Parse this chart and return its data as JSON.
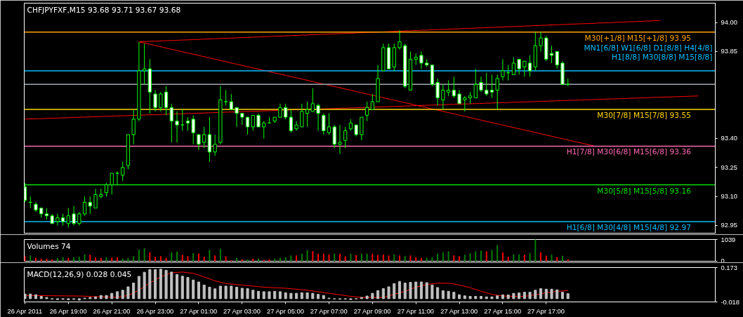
{
  "chart_data": [
    {
      "type": "candlestick",
      "title": "CHFJPYFXF,M15  93.68 93.71 93.67 93.68",
      "tick_labels": "y",
      "xlim": [
        "2011-04-26T16:58",
        "2011-04-28T00:47"
      ],
      "ylim": [
        92.91,
        94.1
      ],
      "yticks": [
        {
          "value": 94,
          "label": "94.00"
        },
        93.85,
        {
          "value": 93.4,
          "label": "93.40"
        },
        93.25,
        {
          "value": 93.1,
          "label": "93.10"
        },
        92.95
      ],
      "x": [
        "2011-04-26T17:00",
        "2011-04-26T17:15",
        "2011-04-26T17:30",
        "2011-04-26T17:45",
        "2011-04-26T18:00",
        "2011-04-26T18:15",
        "2011-04-26T18:30",
        "2011-04-26T18:45",
        "2011-04-26T19:00",
        "2011-04-26T19:15",
        "2011-04-26T19:30",
        "2011-04-26T19:45",
        "2011-04-26T20:00",
        "2011-04-26T20:15",
        "2011-04-26T20:30",
        "2011-04-26T20:45",
        "2011-04-26T21:00",
        "2011-04-26T21:15",
        "2011-04-26T21:30",
        "2011-04-26T21:45",
        "2011-04-26T22:00",
        "2011-04-26T22:15",
        "2011-04-26T22:30",
        "2011-04-26T22:45",
        "2011-04-26T23:00",
        "2011-04-26T23:15",
        "2011-04-26T23:30",
        "2011-04-26T23:45",
        "2011-04-27T00:00",
        "2011-04-27T00:15",
        "2011-04-27T00:30",
        "2011-04-27T00:45",
        "2011-04-27T01:00",
        "2011-04-27T01:15",
        "2011-04-27T01:30",
        "2011-04-27T01:45",
        "2011-04-27T02:00",
        "2011-04-27T02:15",
        "2011-04-27T02:30",
        "2011-04-27T02:45",
        "2011-04-27T03:00",
        "2011-04-27T03:15",
        "2011-04-27T03:30",
        "2011-04-27T03:45",
        "2011-04-27T04:00",
        "2011-04-27T04:15",
        "2011-04-27T04:30",
        "2011-04-27T04:45",
        "2011-04-27T05:00",
        "2011-04-27T05:15",
        "2011-04-27T05:30",
        "2011-04-27T05:45",
        "2011-04-27T06:00",
        "2011-04-27T06:15",
        "2011-04-27T06:30",
        "2011-04-27T06:45",
        "2011-04-27T07:00",
        "2011-04-27T07:15",
        "2011-04-27T07:30",
        "2011-04-27T07:45",
        "2011-04-27T08:00",
        "2011-04-27T08:15",
        "2011-04-27T08:30",
        "2011-04-27T08:45",
        "2011-04-27T09:00",
        "2011-04-27T09:15",
        "2011-04-27T09:30",
        "2011-04-27T09:45",
        "2011-04-27T10:00",
        "2011-04-27T10:15",
        "2011-04-27T10:30",
        "2011-04-27T10:45",
        "2011-04-27T11:00",
        "2011-04-27T11:15",
        "2011-04-27T11:30",
        "2011-04-27T11:45",
        "2011-04-27T12:00",
        "2011-04-27T12:15",
        "2011-04-27T12:30",
        "2011-04-27T12:45",
        "2011-04-27T13:00",
        "2011-04-27T13:15",
        "2011-04-27T13:30",
        "2011-04-27T13:45",
        "2011-04-27T14:00",
        "2011-04-27T14:15",
        "2011-04-27T14:30",
        "2011-04-27T14:45",
        "2011-04-27T15:00",
        "2011-04-27T15:15",
        "2011-04-27T15:30",
        "2011-04-27T15:45",
        "2011-04-27T16:00",
        "2011-04-27T16:15",
        "2011-04-27T16:30",
        "2011-04-27T16:45",
        "2011-04-27T17:00",
        "2011-04-27T17:15",
        "2011-04-27T17:30",
        "2011-04-27T17:45",
        "2011-04-27T18:00"
      ],
      "series": [
        {
          "type": "line",
          "color": "#ff0000",
          "x": [
            "2011-04-26T22:15",
            "2011-04-27T22:15"
          ],
          "values": [
            93.9,
            94.01
          ]
        },
        {
          "type": "line",
          "color": "#ff0000",
          "x": [
            "2011-04-26T22:15",
            "2011-04-27T19:15"
          ],
          "values": [
            93.9,
            93.36
          ]
        },
        {
          "type": "line",
          "color": "#ff0000",
          "x": [
            "2011-04-26T17:00",
            "2011-04-28T00:00"
          ],
          "values": [
            93.5,
            93.62
          ]
        },
        {
          "type": "candlestick",
          "color": "#00ff00",
          "ohlc": [
            [
              93.15,
              93.17,
              93.07,
              93.08
            ],
            [
              93.07,
              93.1,
              93.04,
              93.07
            ],
            [
              93.06,
              93.07,
              93.02,
              93.03
            ],
            [
              93.04,
              93.04,
              92.99,
              93.01
            ],
            [
              93.01,
              93.04,
              92.98,
              93.0
            ],
            [
              93.0,
              93.01,
              92.96,
              92.96
            ],
            [
              92.97,
              93.01,
              92.95,
              92.99
            ],
            [
              92.99,
              93.01,
              92.95,
              92.97
            ],
            [
              92.96,
              93.04,
              92.94,
              93.0
            ],
            [
              93.01,
              93.05,
              92.95,
              92.96
            ],
            [
              92.96,
              93.02,
              92.95,
              93.01
            ],
            [
              93.01,
              93.1,
              93.0,
              93.07
            ],
            [
              93.07,
              93.1,
              93.01,
              93.05
            ],
            [
              93.04,
              93.14,
              93.04,
              93.11
            ],
            [
              93.1,
              93.14,
              93.09,
              93.11
            ],
            [
              93.12,
              93.17,
              93.1,
              93.16
            ],
            [
              93.16,
              93.22,
              93.11,
              93.22
            ],
            [
              93.22,
              93.23,
              93.16,
              93.22
            ],
            [
              93.21,
              93.28,
              93.18,
              93.25
            ],
            [
              93.26,
              93.42,
              93.24,
              93.42
            ],
            [
              93.42,
              93.55,
              93.37,
              93.5
            ],
            [
              93.5,
              93.9,
              93.49,
              93.75
            ],
            [
              93.75,
              93.89,
              93.68,
              93.76
            ],
            [
              93.76,
              93.81,
              93.53,
              93.64
            ],
            [
              93.63,
              93.65,
              93.54,
              93.56
            ],
            [
              93.56,
              93.64,
              93.54,
              93.63
            ],
            [
              93.64,
              93.67,
              93.52,
              93.56
            ],
            [
              93.56,
              93.58,
              93.38,
              93.49
            ],
            [
              93.49,
              93.54,
              93.38,
              93.47
            ],
            [
              93.47,
              93.55,
              93.44,
              93.47
            ],
            [
              93.49,
              93.51,
              93.44,
              93.48
            ],
            [
              93.5,
              93.52,
              93.37,
              93.43
            ],
            [
              93.42,
              93.42,
              93.34,
              93.37
            ],
            [
              93.38,
              93.46,
              93.35,
              93.42
            ],
            [
              93.42,
              93.51,
              93.28,
              93.33
            ],
            [
              93.33,
              93.42,
              93.31,
              93.37
            ],
            [
              93.38,
              93.67,
              93.37,
              93.6
            ],
            [
              93.59,
              93.65,
              93.57,
              93.59
            ],
            [
              93.59,
              93.63,
              93.55,
              93.55
            ],
            [
              93.56,
              93.56,
              93.46,
              93.53
            ],
            [
              93.53,
              93.53,
              93.47,
              93.51
            ],
            [
              93.51,
              93.51,
              93.42,
              93.46
            ],
            [
              93.46,
              93.52,
              93.44,
              93.52
            ],
            [
              93.52,
              93.53,
              93.46,
              93.46
            ],
            [
              93.46,
              93.49,
              93.4,
              93.48
            ],
            [
              93.48,
              93.51,
              93.48,
              93.48
            ],
            [
              93.49,
              93.51,
              93.48,
              93.51
            ],
            [
              93.51,
              93.58,
              93.51,
              93.56
            ],
            [
              93.56,
              93.58,
              93.5,
              93.51
            ],
            [
              93.51,
              93.55,
              93.43,
              93.44
            ],
            [
              93.45,
              93.49,
              93.44,
              93.47
            ],
            [
              93.46,
              93.58,
              93.46,
              93.54
            ],
            [
              93.53,
              93.59,
              93.46,
              93.55
            ],
            [
              93.54,
              93.66,
              93.54,
              93.58
            ],
            [
              93.57,
              93.58,
              93.44,
              93.53
            ],
            [
              93.52,
              93.53,
              93.42,
              93.44
            ],
            [
              93.43,
              93.53,
              93.42,
              93.46
            ],
            [
              93.46,
              93.47,
              93.35,
              93.37
            ],
            [
              93.37,
              93.47,
              93.32,
              93.38
            ],
            [
              93.39,
              93.46,
              93.35,
              93.44
            ],
            [
              93.45,
              93.5,
              93.44,
              93.48
            ],
            [
              93.47,
              93.47,
              93.41,
              93.42
            ],
            [
              93.42,
              93.51,
              93.39,
              93.51
            ],
            [
              93.52,
              93.59,
              93.49,
              93.56
            ],
            [
              93.55,
              93.63,
              93.55,
              93.59
            ],
            [
              93.59,
              93.78,
              93.59,
              93.71
            ],
            [
              93.75,
              93.89,
              93.75,
              93.87
            ],
            [
              93.87,
              93.89,
              93.76,
              93.76
            ],
            [
              93.77,
              93.89,
              93.75,
              93.87
            ],
            [
              93.87,
              93.96,
              93.86,
              93.9
            ],
            [
              93.88,
              93.89,
              93.66,
              93.67
            ],
            [
              93.65,
              93.85,
              93.65,
              93.81
            ],
            [
              93.81,
              93.84,
              93.78,
              93.82
            ],
            [
              93.83,
              93.85,
              93.76,
              93.79
            ],
            [
              93.79,
              93.81,
              93.77,
              93.78
            ],
            [
              93.78,
              93.78,
              93.67,
              93.68
            ],
            [
              93.69,
              93.71,
              93.57,
              93.61
            ],
            [
              93.6,
              93.68,
              93.55,
              93.65
            ],
            [
              93.64,
              93.7,
              93.62,
              93.65
            ],
            [
              93.65,
              93.72,
              93.61,
              93.62
            ],
            [
              93.63,
              93.65,
              93.58,
              93.58
            ],
            [
              93.6,
              93.62,
              93.54,
              93.61
            ],
            [
              93.61,
              93.64,
              93.58,
              93.62
            ],
            [
              93.61,
              93.76,
              93.61,
              93.68
            ],
            [
              93.69,
              93.72,
              93.64,
              93.65
            ],
            [
              93.65,
              93.74,
              93.62,
              93.63
            ],
            [
              93.65,
              93.73,
              93.61,
              93.64
            ],
            [
              93.65,
              93.73,
              93.55,
              93.71
            ],
            [
              93.72,
              93.81,
              93.7,
              93.75
            ],
            [
              93.74,
              93.78,
              93.7,
              93.74
            ],
            [
              93.73,
              93.82,
              93.73,
              93.79
            ],
            [
              93.81,
              93.81,
              93.73,
              93.76
            ],
            [
              93.77,
              93.8,
              93.72,
              93.8
            ],
            [
              93.79,
              93.83,
              93.72,
              93.75
            ],
            [
              93.77,
              93.95,
              93.75,
              93.88
            ],
            [
              93.88,
              93.95,
              93.85,
              93.92
            ],
            [
              93.92,
              93.93,
              93.8,
              93.81
            ],
            [
              93.84,
              93.88,
              93.79,
              93.83
            ],
            [
              93.85,
              93.85,
              93.76,
              93.78
            ],
            [
              93.79,
              93.8,
              93.68,
              93.68
            ],
            [
              93.68,
              93.71,
              93.67,
              93.68
            ]
          ]
        }
      ],
      "ref_lines": [
        {
          "axis": "y",
          "value": 93.95,
          "label": "M30[+1/8] M15[+1/8]          93.95",
          "color": "#ffa500"
        },
        {
          "axis": "y",
          "value": 93.75,
          "label": "MN1[6/8] W1[6/8] D1[8/8] H4[4/8] H1[8/8] M30[8/8] M15[8/8]",
          "color": "#00bfff"
        },
        {
          "axis": "y",
          "value": 93.68,
          "label": null,
          "color": "#a0a8b0"
        },
        {
          "axis": "y",
          "value": 93.55,
          "label": "M30[7/8] M15[7/8]          93.55",
          "color": "#ffd700"
        },
        {
          "axis": "y",
          "value": 93.36,
          "label": "H1[7/8] M30[6/8] M15[6/8]          93.36",
          "color": "#ff69b4"
        },
        {
          "axis": "y",
          "value": 93.16,
          "label": "M30[5/8] M15[5/8]          93.16",
          "color": "#00e000"
        },
        {
          "axis": "y",
          "value": 92.97,
          "label": "H1[6/8] M30[4/8] M15[4/8]          92.97",
          "color": "#00bfff"
        }
      ]
    },
    {
      "type": "bar",
      "title": "Volumes 74",
      "tick_labels": "y",
      "xlim": [
        "2011-04-26T16:58",
        "2011-04-28T00:47"
      ],
      "ylim": [
        0,
        1039
      ],
      "yticks": [
        1039,
        0
      ],
      "x": [
        "2011-04-26T17:00",
        "2011-04-26T17:15",
        "2011-04-26T17:30",
        "2011-04-26T17:45",
        "2011-04-26T18:00",
        "2011-04-26T18:15",
        "2011-04-26T18:30",
        "2011-04-26T18:45",
        "2011-04-26T19:00",
        "2011-04-26T19:15",
        "2011-04-26T19:30",
        "2011-04-26T19:45",
        "2011-04-26T20:00",
        "2011-04-26T20:15",
        "2011-04-26T20:30",
        "2011-04-26T20:45",
        "2011-04-26T21:00",
        "2011-04-26T21:15",
        "2011-04-26T21:30",
        "2011-04-26T21:45",
        "2011-04-26T22:00",
        "2011-04-26T22:15",
        "2011-04-26T22:30",
        "2011-04-26T22:45",
        "2011-04-26T23:00",
        "2011-04-26T23:15",
        "2011-04-26T23:30",
        "2011-04-26T23:45",
        "2011-04-27T00:00",
        "2011-04-27T00:15",
        "2011-04-27T00:30",
        "2011-04-27T00:45",
        "2011-04-27T01:00",
        "2011-04-27T01:15",
        "2011-04-27T01:30",
        "2011-04-27T01:45",
        "2011-04-27T02:00",
        "2011-04-27T02:15",
        "2011-04-27T02:30",
        "2011-04-27T02:45",
        "2011-04-27T03:00",
        "2011-04-27T03:15",
        "2011-04-27T03:30",
        "2011-04-27T03:45",
        "2011-04-27T04:00",
        "2011-04-27T04:15",
        "2011-04-27T04:30",
        "2011-04-27T04:45",
        "2011-04-27T05:00",
        "2011-04-27T05:15",
        "2011-04-27T05:30",
        "2011-04-27T05:45",
        "2011-04-27T06:00",
        "2011-04-27T06:15",
        "2011-04-27T06:30",
        "2011-04-27T06:45",
        "2011-04-27T07:00",
        "2011-04-27T07:15",
        "2011-04-27T07:30",
        "2011-04-27T07:45",
        "2011-04-27T08:00",
        "2011-04-27T08:15",
        "2011-04-27T08:30",
        "2011-04-27T08:45",
        "2011-04-27T09:00",
        "2011-04-27T09:15",
        "2011-04-27T09:30",
        "2011-04-27T09:45",
        "2011-04-27T10:00",
        "2011-04-27T10:15",
        "2011-04-27T10:30",
        "2011-04-27T10:45",
        "2011-04-27T11:00",
        "2011-04-27T11:15",
        "2011-04-27T11:30",
        "2011-04-27T11:45",
        "2011-04-27T12:00",
        "2011-04-27T12:15",
        "2011-04-27T12:30",
        "2011-04-27T12:45",
        "2011-04-27T13:00",
        "2011-04-27T13:15",
        "2011-04-27T13:30",
        "2011-04-27T13:45",
        "2011-04-27T14:00",
        "2011-04-27T14:15",
        "2011-04-27T14:30",
        "2011-04-27T14:45",
        "2011-04-27T15:00",
        "2011-04-27T15:15",
        "2011-04-27T15:30",
        "2011-04-27T15:45",
        "2011-04-27T16:00",
        "2011-04-27T16:15",
        "2011-04-27T16:30",
        "2011-04-27T16:45",
        "2011-04-27T17:00",
        "2011-04-27T17:15",
        "2011-04-27T17:30",
        "2011-04-27T17:45",
        "2011-04-27T18:00"
      ],
      "values": [
        230,
        265,
        150,
        115,
        115,
        80,
        150,
        185,
        150,
        185,
        205,
        320,
        300,
        175,
        150,
        185,
        150,
        185,
        115,
        150,
        230,
        550,
        600,
        415,
        205,
        230,
        150,
        415,
        450,
        290,
        240,
        380,
        355,
        205,
        530,
        265,
        590,
        230,
        35,
        150,
        80,
        80,
        115,
        115,
        45,
        90,
        115,
        150,
        185,
        265,
        265,
        350,
        520,
        470,
        350,
        350,
        320,
        350,
        350,
        230,
        350,
        280,
        350,
        350,
        350,
        290,
        320,
        265,
        320,
        265,
        240,
        265,
        185,
        150,
        150,
        185,
        355,
        415,
        460,
        265,
        230,
        300,
        370,
        460,
        495,
        460,
        530,
        760,
        415,
        205,
        320,
        320,
        290,
        380,
        1039,
        415,
        255,
        300,
        185,
        255,
        74
      ],
      "colors": [
        "#ff0000",
        "#008000",
        "#ff0000",
        "#ff0000",
        "#ff0000",
        "#ff0000",
        "#008000",
        "#008000",
        "#ff0000",
        "#008000",
        "#008000",
        "#008000",
        "#ff0000",
        "#ff0000",
        "#ff0000",
        "#008000",
        "#ff0000",
        "#ff0000",
        "#008000",
        "#008000",
        "#008000",
        "#008000",
        "#008000",
        "#ff0000",
        "#ff0000",
        "#ff0000",
        "#ff0000",
        "#008000",
        "#008000",
        "#ff0000",
        "#ff0000",
        "#008000",
        "#ff0000",
        "#ff0000",
        "#008000",
        "#ff0000",
        "#008000",
        "#ff0000",
        "#ff0000",
        "#008000",
        "#ff0000",
        "#008000",
        "#ff0000",
        "#008000",
        "#ff0000",
        "#ff0000",
        "#008000",
        "#008000",
        "#008000",
        "#008000",
        "#ff0000",
        "#008000",
        "#008000",
        "#ff0000",
        "#ff0000",
        "#ff0000",
        "#ff0000",
        "#008000",
        "#ff0000",
        "#ff0000",
        "#008000",
        "#ff0000",
        "#008000",
        "#008000",
        "#ff0000",
        "#ff0000",
        "#ff0000",
        "#ff0000",
        "#008000",
        "#ff0000",
        "#008000",
        "#ff0000",
        "#ff0000",
        "#ff0000",
        "#008000",
        "#008000",
        "#008000",
        "#008000",
        "#008000",
        "#ff0000",
        "#ff0000",
        "#008000",
        "#008000",
        "#008000",
        "#008000",
        "#ff0000",
        "#008000",
        "#008000",
        "#ff0000",
        "#ff0000",
        "#008000",
        "#008000",
        "#ff0000",
        "#008000",
        "#008000",
        "#ff0000",
        "#ff0000",
        "#008000",
        "#ff0000",
        "#008000",
        "#ff0000"
      ]
    },
    {
      "type": "bar",
      "title": "MACD(12,26,9) 0.028 0.045",
      "xlim": [
        "2011-04-26T16:58",
        "2011-04-28T00:47"
      ],
      "ylim": [
        -0.018,
        0.173
      ],
      "yticks": [
        0.173,
        -0.018
      ],
      "x": [
        "2011-04-26T17:00",
        "2011-04-26T17:15",
        "2011-04-26T17:30",
        "2011-04-26T17:45",
        "2011-04-26T18:00",
        "2011-04-26T18:15",
        "2011-04-26T18:30",
        "2011-04-26T18:45",
        "2011-04-26T19:00",
        "2011-04-26T19:15",
        "2011-04-26T19:30",
        "2011-04-26T19:45",
        "2011-04-26T20:00",
        "2011-04-26T20:15",
        "2011-04-26T20:30",
        "2011-04-26T20:45",
        "2011-04-26T21:00",
        "2011-04-26T21:15",
        "2011-04-26T21:30",
        "2011-04-26T21:45",
        "2011-04-26T22:00",
        "2011-04-26T22:15",
        "2011-04-26T22:30",
        "2011-04-26T22:45",
        "2011-04-26T23:00",
        "2011-04-26T23:15",
        "2011-04-26T23:30",
        "2011-04-26T23:45",
        "2011-04-27T00:00",
        "2011-04-27T00:15",
        "2011-04-27T00:30",
        "2011-04-27T00:45",
        "2011-04-27T01:00",
        "2011-04-27T01:15",
        "2011-04-27T01:30",
        "2011-04-27T01:45",
        "2011-04-27T02:00",
        "2011-04-27T02:15",
        "2011-04-27T02:30",
        "2011-04-27T02:45",
        "2011-04-27T03:00",
        "2011-04-27T03:15",
        "2011-04-27T03:30",
        "2011-04-27T03:45",
        "2011-04-27T04:00",
        "2011-04-27T04:15",
        "2011-04-27T04:30",
        "2011-04-27T04:45",
        "2011-04-27T05:00",
        "2011-04-27T05:15",
        "2011-04-27T05:30",
        "2011-04-27T05:45",
        "2011-04-27T06:00",
        "2011-04-27T06:15",
        "2011-04-27T06:30",
        "2011-04-27T06:45",
        "2011-04-27T07:00",
        "2011-04-27T07:15",
        "2011-04-27T07:30",
        "2011-04-27T07:45",
        "2011-04-27T08:00",
        "2011-04-27T08:15",
        "2011-04-27T08:30",
        "2011-04-27T08:45",
        "2011-04-27T09:00",
        "2011-04-27T09:15",
        "2011-04-27T09:30",
        "2011-04-27T09:45",
        "2011-04-27T10:00",
        "2011-04-27T10:15",
        "2011-04-27T10:30",
        "2011-04-27T10:45",
        "2011-04-27T11:00",
        "2011-04-27T11:15",
        "2011-04-27T11:30",
        "2011-04-27T11:45",
        "2011-04-27T12:00",
        "2011-04-27T12:15",
        "2011-04-27T12:30",
        "2011-04-27T12:45",
        "2011-04-27T13:00",
        "2011-04-27T13:15",
        "2011-04-27T13:30",
        "2011-04-27T13:45",
        "2011-04-27T14:00",
        "2011-04-27T14:15",
        "2011-04-27T14:30",
        "2011-04-27T14:45",
        "2011-04-27T15:00",
        "2011-04-27T15:15",
        "2011-04-27T15:30",
        "2011-04-27T15:45",
        "2011-04-27T16:00",
        "2011-04-27T16:15",
        "2011-04-27T16:30",
        "2011-04-27T16:45",
        "2011-04-27T17:00",
        "2011-04-27T17:15",
        "2011-04-27T17:30",
        "2011-04-27T17:45",
        "2011-04-27T18:00"
      ],
      "xticks": [
        {
          "value": "2011-04-26T17:00",
          "label": "26 Apr 2011"
        },
        {
          "value": "2011-04-26T19:00",
          "label": "26 Apr 19:00"
        },
        {
          "value": "2011-04-26T21:00",
          "label": "26 Apr 21:00"
        },
        {
          "value": "2011-04-26T23:00",
          "label": "26 Apr 23:00"
        },
        {
          "value": "2011-04-27T01:00",
          "label": "27 Apr 01:00"
        },
        {
          "value": "2011-04-27T03:00",
          "label": "27 Apr 03:00"
        },
        {
          "value": "2011-04-27T05:00",
          "label": "27 Apr 05:00"
        },
        {
          "value": "2011-04-27T07:00",
          "label": "27 Apr 07:00"
        },
        {
          "value": "2011-04-27T09:00",
          "label": "27 Apr 09:00"
        },
        {
          "value": "2011-04-27T11:00",
          "label": "27 Apr 11:00"
        },
        {
          "value": "2011-04-27T13:00",
          "label": "27 Apr 13:00"
        },
        {
          "value": "2011-04-27T15:00",
          "label": "27 Apr 15:00"
        },
        {
          "value": "2011-04-27T17:00",
          "label": "27 Apr 17:00"
        }
      ],
      "series": [
        {
          "type": "bar",
          "color": "#c0c0c0",
          "values": [
            0.026,
            0.026,
            0.022,
            0.013,
            0.007,
            -0.002,
            -0.005,
            -0.004,
            -0.006,
            -0.004,
            -0.008,
            0.003,
            0.007,
            0.01,
            0.018,
            0.018,
            0.03,
            0.039,
            0.047,
            0.066,
            0.087,
            0.124,
            0.147,
            0.162,
            0.162,
            0.164,
            0.158,
            0.148,
            0.135,
            0.125,
            0.118,
            0.104,
            0.093,
            0.076,
            0.064,
            0.055,
            0.07,
            0.07,
            0.07,
            0.064,
            0.058,
            0.056,
            0.047,
            0.041,
            0.039,
            0.039,
            0.041,
            0.039,
            0.033,
            0.03,
            0.03,
            0.033,
            0.033,
            0.03,
            0.024,
            0.018,
            0.003,
            -0.001,
            -0.003,
            -0.002,
            -0.005,
            -0.001,
            0.007,
            0.015,
            0.03,
            0.045,
            0.056,
            0.066,
            0.084,
            0.096,
            0.087,
            0.091,
            0.093,
            0.093,
            0.089,
            0.076,
            0.062,
            0.044,
            0.041,
            0.036,
            0.022,
            0.016,
            0.013,
            0.013,
            0.013,
            0.01,
            0.01,
            0.016,
            0.021,
            0.021,
            0.03,
            0.032,
            0.036,
            0.036,
            0.047,
            0.056,
            0.053,
            0.053,
            0.049,
            0.036,
            0.028
          ]
        },
        {
          "type": "line",
          "color": "#ff0000",
          "x": [
            "2011-04-26T17:00",
            "2011-04-26T19:30",
            "2011-04-26T21:15",
            "2011-04-26T21:45",
            "2011-04-26T22:15",
            "2011-04-26T22:45",
            "2011-04-26T23:15",
            "2011-04-26T23:45",
            "2011-04-27T00:15",
            "2011-04-27T00:45",
            "2011-04-27T01:15",
            "2011-04-27T01:45",
            "2011-04-27T02:15",
            "2011-04-27T03:00",
            "2011-04-27T04:00",
            "2011-04-27T05:00",
            "2011-04-27T06:00",
            "2011-04-27T07:00",
            "2011-04-27T08:00",
            "2011-04-27T08:30",
            "2011-04-27T09:00",
            "2011-04-27T09:30",
            "2011-04-27T10:00",
            "2011-04-27T10:30",
            "2011-04-27T11:00",
            "2011-04-27T11:30",
            "2011-04-27T12:00",
            "2011-04-27T12:30",
            "2011-04-27T13:00",
            "2011-04-27T13:30",
            "2011-04-27T14:00",
            "2011-04-27T14:30",
            "2011-04-27T15:00",
            "2011-04-27T15:30",
            "2011-04-27T16:00",
            "2011-04-27T16:30",
            "2011-04-27T17:00",
            "2011-04-27T17:30",
            "2011-04-27T18:00"
          ],
          "values": [
            0.018,
            0.015,
            0.007,
            0.018,
            0.047,
            0.087,
            0.121,
            0.144,
            0.148,
            0.141,
            0.121,
            0.099,
            0.084,
            0.076,
            0.064,
            0.058,
            0.047,
            0.03,
            0.013,
            0.007,
            0.007,
            0.007,
            0.024,
            0.041,
            0.064,
            0.079,
            0.086,
            0.086,
            0.076,
            0.061,
            0.041,
            0.024,
            0.015,
            0.013,
            0.013,
            0.022,
            0.033,
            0.041,
            0.045
          ]
        }
      ]
    }
  ]
}
